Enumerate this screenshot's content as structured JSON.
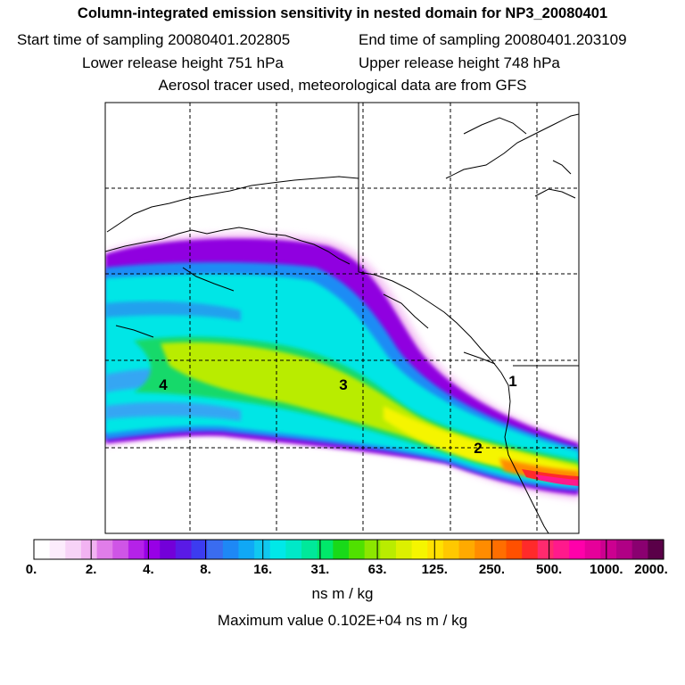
{
  "header": {
    "title": "Column-integrated emission sensitivity in nested domain for NP3_20080401",
    "start_label": "Start time of sampling 20080401.202805",
    "end_label": "End time of sampling 20080401.203109",
    "lower_label": "Lower release height  751 hPa",
    "upper_label": "Upper release height  748 hPa",
    "tracer_label": "Aerosol tracer used, meteorological data are from GFS"
  },
  "map": {
    "markers": [
      "4",
      "3",
      "2",
      "1"
    ]
  },
  "colorbar": {
    "tick_labels": [
      "0.",
      "2.",
      "4.",
      "8.",
      "16.",
      "31.",
      "63.",
      "125.",
      "250.",
      "500.",
      "1000.",
      "2000."
    ],
    "colors": [
      "#ffffff",
      "#fcecfc",
      "#f7d3f7",
      "#f2b3f2",
      "#e07de9",
      "#cf55e6",
      "#b522e8",
      "#9800e6",
      "#7300d9",
      "#5a1ae6",
      "#3c3cf0",
      "#3a6cf0",
      "#1e88f5",
      "#10a8f5",
      "#10c8f0",
      "#00e8e8",
      "#00e8c8",
      "#00e89a",
      "#00e86a",
      "#19d919",
      "#50e100",
      "#8ce600",
      "#b9ec00",
      "#dcf000",
      "#f5f500",
      "#ffe100",
      "#ffc800",
      "#ffaa00",
      "#ff8c00",
      "#ff6e00",
      "#ff5000",
      "#ff2a2a",
      "#ff2a6e",
      "#ff1a8c",
      "#ff00aa",
      "#e6009a",
      "#cc0090",
      "#b00085",
      "#8a0070",
      "#5a0048"
    ],
    "units": "ns m / kg",
    "max_value_label": "Maximum value  0.102E+04 ns m / kg"
  }
}
